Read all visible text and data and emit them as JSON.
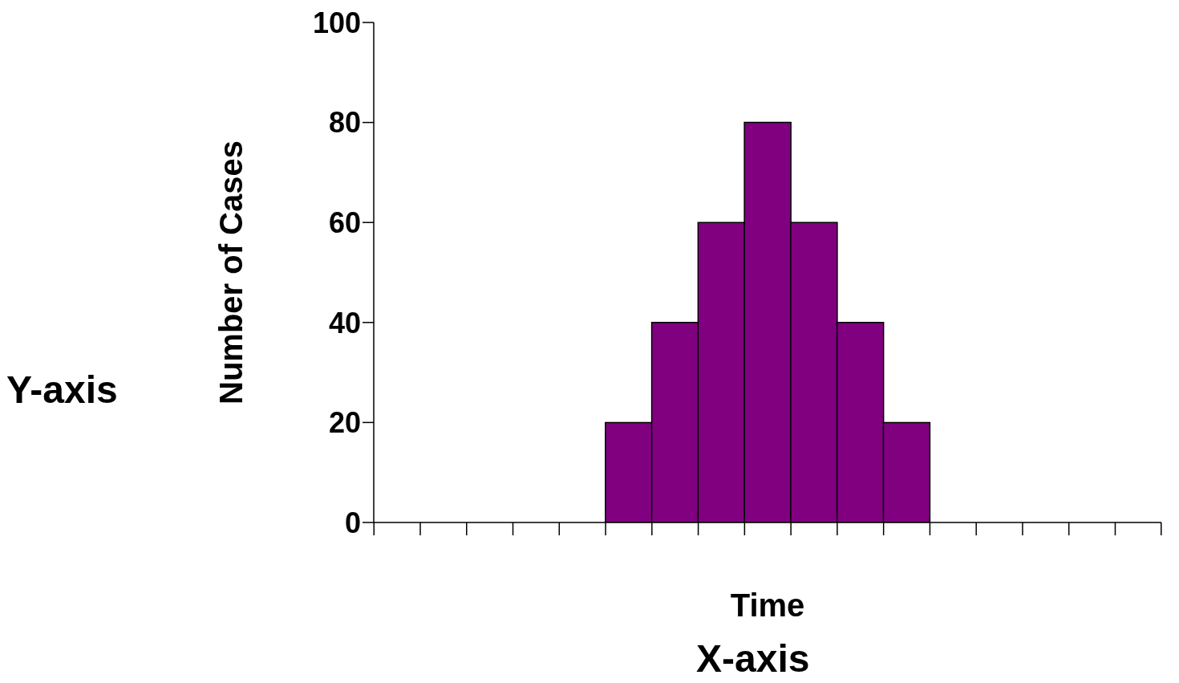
{
  "chart_data": {
    "type": "bar",
    "ylabel": "Number of Cases",
    "xlabel": "Time",
    "annotations": [
      "Y-axis",
      "X-axis"
    ],
    "categories": [
      null,
      null,
      null,
      null,
      null,
      null,
      null,
      null,
      null,
      null,
      null,
      null,
      null,
      null,
      null,
      null,
      null
    ],
    "values": [
      0,
      0,
      0,
      0,
      0,
      20,
      40,
      60,
      80,
      60,
      40,
      20,
      0,
      0,
      0,
      0,
      0
    ],
    "color": "#800080",
    "ylim": [
      0,
      100
    ],
    "yticks": [
      0,
      20,
      40,
      60,
      80,
      100
    ],
    "grid": false,
    "tick_labels": "y"
  }
}
